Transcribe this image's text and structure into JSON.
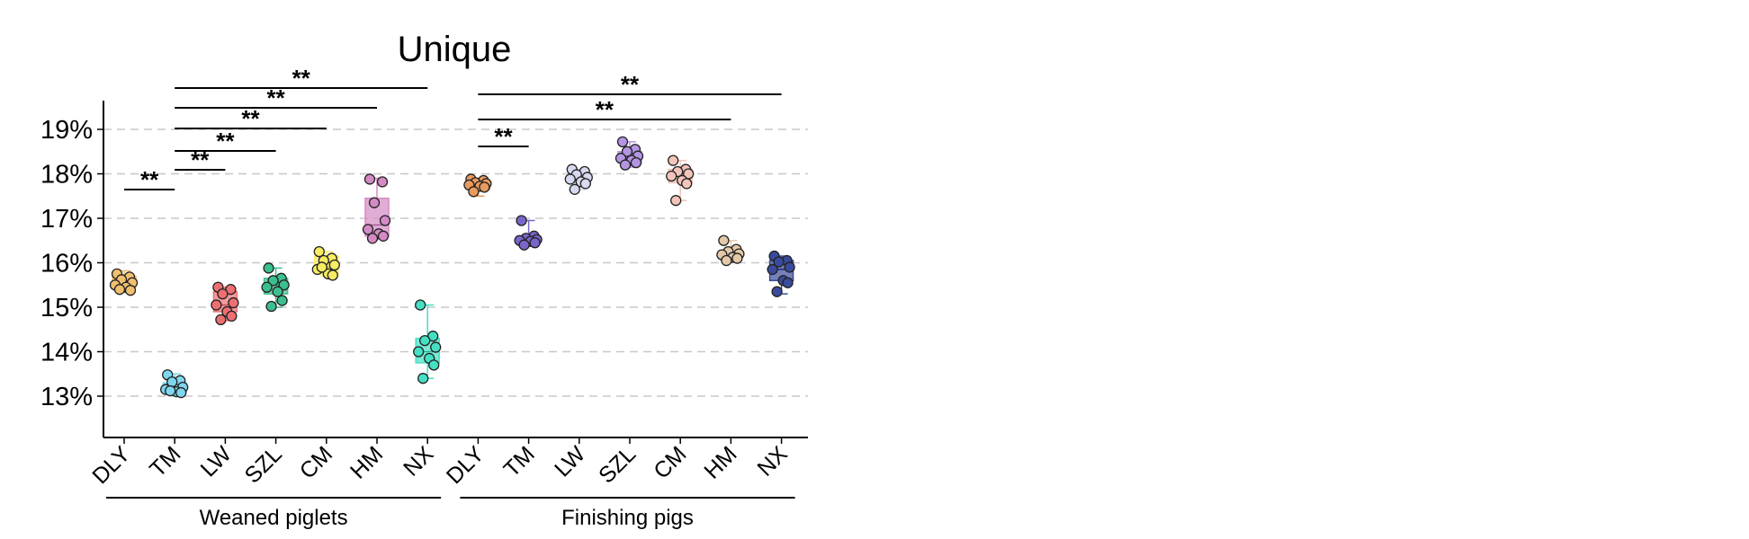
{
  "chart_data": {
    "type": "box",
    "title": "Unique",
    "xlabel": "",
    "ylabel": "",
    "ylim": [
      12.1,
      19.7
    ],
    "yticks": [
      13,
      14,
      15,
      16,
      17,
      18,
      19
    ],
    "ytick_labels": [
      "13%",
      "14%",
      "15%",
      "16%",
      "17%",
      "18%",
      "19%"
    ],
    "grid": "horizontal dashed",
    "groups": [
      {
        "label": "Weaned piglets",
        "categories": [
          "DLY",
          "TM",
          "LW",
          "SZL",
          "CM",
          "HM",
          "NX"
        ]
      },
      {
        "label": "Finishing pigs",
        "categories": [
          "DLY",
          "TM",
          "LW",
          "SZL",
          "CM",
          "HM",
          "NX"
        ]
      }
    ],
    "series": [
      {
        "group": "Weaned piglets",
        "category": "DLY",
        "color": "#f0c070",
        "box": {
          "min": 15.35,
          "q1": 15.45,
          "median": 15.58,
          "q3": 15.7,
          "max": 15.82
        },
        "points": [
          15.75,
          15.68,
          15.62,
          15.55,
          15.5,
          15.45,
          15.38,
          15.4
        ]
      },
      {
        "group": "Weaned piglets",
        "category": "TM",
        "color": "#7fd6ef",
        "box": {
          "min": 13.05,
          "q1": 13.1,
          "median": 13.18,
          "q3": 13.3,
          "max": 13.5
        },
        "points": [
          13.48,
          13.35,
          13.32,
          13.2,
          13.15,
          13.1,
          13.08,
          13.12
        ]
      },
      {
        "group": "Weaned piglets",
        "category": "LW",
        "color": "#ee6f72",
        "box": {
          "min": 14.7,
          "q1": 14.9,
          "median": 15.05,
          "q3": 15.35,
          "max": 15.45
        },
        "points": [
          15.45,
          15.4,
          15.3,
          15.1,
          15.05,
          14.9,
          14.8,
          14.72
        ]
      },
      {
        "group": "Weaned piglets",
        "category": "SZL",
        "color": "#3cbf8e",
        "box": {
          "min": 15.0,
          "q1": 15.3,
          "median": 15.5,
          "q3": 15.65,
          "max": 15.88
        },
        "points": [
          15.88,
          15.65,
          15.6,
          15.5,
          15.45,
          15.35,
          15.15,
          15.02
        ]
      },
      {
        "group": "Weaned piglets",
        "category": "CM",
        "color": "#f7ec62",
        "box": {
          "min": 15.7,
          "q1": 15.75,
          "median": 15.9,
          "q3": 16.15,
          "max": 16.25
        },
        "points": [
          16.25,
          16.1,
          16.05,
          15.95,
          15.85,
          15.75,
          15.72,
          15.9
        ]
      },
      {
        "group": "Weaned piglets",
        "category": "HM",
        "color": "#d48ac4",
        "box": {
          "min": 16.55,
          "q1": 16.6,
          "median": 16.85,
          "q3": 17.45,
          "max": 17.9
        },
        "points": [
          17.88,
          17.82,
          17.35,
          16.95,
          16.75,
          16.65,
          16.6,
          16.55
        ]
      },
      {
        "group": "Weaned piglets",
        "category": "NX",
        "color": "#45e0c4",
        "box": {
          "min": 13.4,
          "q1": 13.75,
          "median": 14.0,
          "q3": 14.3,
          "max": 15.05
        },
        "points": [
          15.05,
          14.35,
          14.25,
          14.1,
          14.0,
          13.85,
          13.7,
          13.4
        ]
      },
      {
        "group": "Finishing pigs",
        "category": "DLY",
        "color": "#e89a5f",
        "box": {
          "min": 17.5,
          "q1": 17.65,
          "median": 17.75,
          "q3": 17.85,
          "max": 17.9
        },
        "points": [
          17.88,
          17.85,
          17.8,
          17.78,
          17.75,
          17.72,
          17.7,
          17.6
        ]
      },
      {
        "group": "Finishing pigs",
        "category": "TM",
        "color": "#7b65c9",
        "box": {
          "min": 16.4,
          "q1": 16.45,
          "median": 16.52,
          "q3": 16.6,
          "max": 16.95
        },
        "points": [
          16.95,
          16.6,
          16.55,
          16.52,
          16.5,
          16.48,
          16.45,
          16.4
        ]
      },
      {
        "group": "Finishing pigs",
        "category": "LW",
        "color": "#d7d9ef",
        "box": {
          "min": 17.65,
          "q1": 17.8,
          "median": 17.9,
          "q3": 18.02,
          "max": 18.1
        },
        "points": [
          18.1,
          18.05,
          17.98,
          17.92,
          17.88,
          17.82,
          17.78,
          17.65
        ]
      },
      {
        "group": "Finishing pigs",
        "category": "SZL",
        "color": "#b495e3",
        "box": {
          "min": 18.15,
          "q1": 18.25,
          "median": 18.35,
          "q3": 18.5,
          "max": 18.72
        },
        "points": [
          18.72,
          18.55,
          18.5,
          18.4,
          18.35,
          18.3,
          18.25,
          18.2
        ]
      },
      {
        "group": "Finishing pigs",
        "category": "CM",
        "color": "#f2c4ba",
        "box": {
          "min": 17.4,
          "q1": 17.8,
          "median": 17.95,
          "q3": 18.1,
          "max": 18.3
        },
        "points": [
          18.3,
          18.1,
          18.05,
          18.0,
          17.95,
          17.85,
          17.78,
          17.4
        ]
      },
      {
        "group": "Finishing pigs",
        "category": "HM",
        "color": "#e3c9a8",
        "box": {
          "min": 16.05,
          "q1": 16.12,
          "median": 16.2,
          "q3": 16.28,
          "max": 16.5
        },
        "points": [
          16.5,
          16.3,
          16.25,
          16.2,
          16.18,
          16.12,
          16.1,
          16.05
        ]
      },
      {
        "group": "Finishing pigs",
        "category": "NX",
        "color": "#3a4b9c",
        "box": {
          "min": 15.3,
          "q1": 15.6,
          "median": 15.85,
          "q3": 16.05,
          "max": 16.15
        },
        "points": [
          16.15,
          16.05,
          16.02,
          15.9,
          15.85,
          15.6,
          15.55,
          15.35
        ]
      }
    ],
    "significance": [
      {
        "group": "Weaned piglets",
        "from": "DLY",
        "to": "TM",
        "label": "**"
      },
      {
        "group": "Weaned piglets",
        "from": "TM",
        "to": "LW",
        "label": "**"
      },
      {
        "group": "Weaned piglets",
        "from": "TM",
        "to": "SZL",
        "label": "**"
      },
      {
        "group": "Weaned piglets",
        "from": "TM",
        "to": "CM",
        "label": "**"
      },
      {
        "group": "Weaned piglets",
        "from": "TM",
        "to": "HM",
        "label": "**"
      },
      {
        "group": "Weaned piglets",
        "from": "TM",
        "to": "NX",
        "label": "**"
      },
      {
        "group": "Finishing pigs",
        "from": "DLY",
        "to": "TM",
        "label": "**"
      },
      {
        "group": "Finishing pigs",
        "from": "DLY",
        "to": "HM",
        "label": "**"
      },
      {
        "group": "Finishing pigs",
        "from": "DLY",
        "to": "NX",
        "label": "**"
      }
    ]
  }
}
